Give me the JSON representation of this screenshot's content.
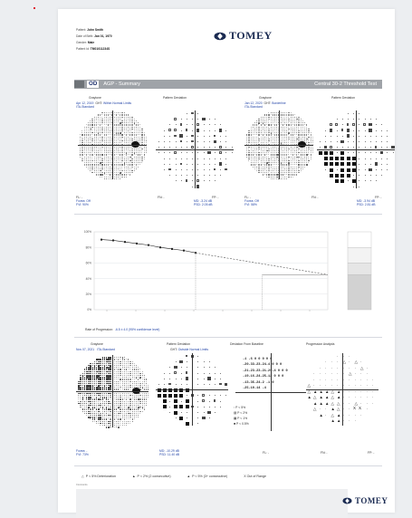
{
  "patient": {
    "name_label": "Patient:",
    "name": "John Smith",
    "dob_label": "Date of Birth:",
    "dob": "Jan 01, 1970",
    "gender_label": "Gender:",
    "gender": "Male",
    "id_label": "Patient Id:",
    "id": "TM01011234S"
  },
  "brand": {
    "name": "TOMEY",
    "color": "#1b2b52"
  },
  "header": {
    "eye": "OD",
    "title": "AGP - Summary",
    "test": "Central 30-2 Threshold Test"
  },
  "exam1": {
    "date": "Apr 12, 2019",
    "ght_label": "GHT:",
    "ght": "Within Normal Limits",
    "strategy": "ITA-Standard",
    "graytone": "Graytone",
    "pattern": "Pattern Deviation",
    "fl": "FL: -",
    "fn": "FN: -",
    "fp": "FP: -",
    "fovea": "Fovea: Off",
    "fvi": "FVI: 90%",
    "md": "MD: -3.24 dB",
    "psd": "PSD: 2.05 dB"
  },
  "exam2": {
    "date": "Jan 12, 2020",
    "ght_label": "GHT:",
    "ght": "Borderline",
    "strategy": "ITA-Standard",
    "graytone": "Graytone",
    "pattern": "Pattern Deviation",
    "fl": "FL: -",
    "fn": "FN: -",
    "fp": "FP: -",
    "fovea": "Fovea: Off",
    "fvi": "FVI: 58%",
    "md": "MD: -3.94 dB",
    "psd": "PSD: 2.81 dB"
  },
  "chart_data": {
    "type": "line",
    "title": "",
    "ylabel": "",
    "xlabel": "",
    "y_ticks": [
      "100%",
      "80%",
      "60%",
      "40%",
      "20%",
      "0%"
    ],
    "ylim": [
      0,
      100
    ],
    "series": [
      {
        "values": [
          90,
          89,
          87,
          85,
          83,
          80,
          78,
          76,
          73
        ]
      }
    ],
    "projection_to": 45,
    "rate_label": "Rate of Progression:",
    "rate": "-6.5 ± 4.0 (95% confidence level)"
  },
  "exam3": {
    "date": "Nov 07, 2021",
    "strategy": "ITA-Standard",
    "ght_label": "GHT:",
    "ght": "Outside Normal Limits",
    "graytone": "Graytone",
    "pattern": "Pattern Deviation",
    "baseline": "Deviation From Baseline",
    "progression": "Progression Analysis",
    "fovea": "Fovea: -",
    "fvi": "FVI: 73%",
    "md": "MD: -10.29 dB",
    "psd": "PSD: 11.40 dB",
    "fl": "FL: -",
    "fn": "FN: -",
    "fp": "FP: -",
    "p5": "P < 5%",
    "p2": "P < 2%",
    "p1": "P < 1%",
    "p05": "P < 0.5%",
    "baseline_values": [
      "-1 -6 0 0 0 0 0",
      "-20-33-23-24-4 0 0 0",
      "-21-23-23-21-29-4 0 0 0",
      "-19-16-24-25-12 0 0 0",
      "-13-35-24-2 -1 0",
      "-25-10-14 -4"
    ]
  },
  "legend": {
    "a": "P < 5% Deterioration",
    "b": "P < 2% (2 consecutive)",
    "c": "P < 5% (3+ consecutive)",
    "d": "X  Out of Range"
  },
  "comments_label": "Comments"
}
